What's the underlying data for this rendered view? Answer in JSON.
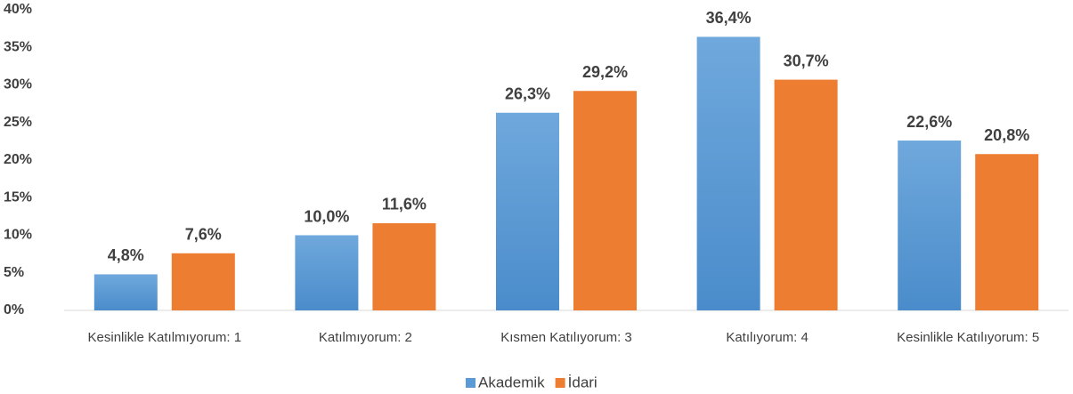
{
  "chart_data": {
    "type": "bar",
    "categories": [
      "Kesinlikle Katılmıyorum: 1",
      "Katılmıyorum: 2",
      "Kısmen Katılıyorum: 3",
      "Katılıyorum: 4",
      "Kesinlikle Katılıyorum: 5"
    ],
    "series": [
      {
        "name": "Akademik",
        "color": "#5b9bd5",
        "values": [
          4.8,
          10.0,
          26.3,
          36.4,
          22.6
        ],
        "value_labels": [
          "4,8%",
          "10,0%",
          "26,3%",
          "36,4%",
          "22,6%"
        ]
      },
      {
        "name": "İdari",
        "color": "#ed7d31",
        "values": [
          7.6,
          11.6,
          29.2,
          30.7,
          20.8
        ],
        "value_labels": [
          "7,6%",
          "11,6%",
          "29,2%",
          "30,7%",
          "20,8%"
        ]
      }
    ],
    "ylim": [
      0,
      40
    ],
    "yticks": [
      {
        "value": 0,
        "label": "0%"
      },
      {
        "value": 5,
        "label": "5%"
      },
      {
        "value": 10,
        "label": "10%"
      },
      {
        "value": 15,
        "label": "15%"
      },
      {
        "value": 20,
        "label": "20%"
      },
      {
        "value": 25,
        "label": "25%"
      },
      {
        "value": 30,
        "label": "30%"
      },
      {
        "value": 35,
        "label": "35%"
      },
      {
        "value": 40,
        "label": "40%"
      }
    ],
    "legend": "bottom"
  }
}
